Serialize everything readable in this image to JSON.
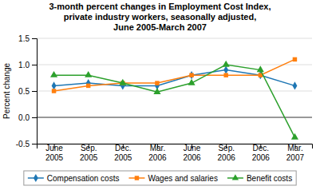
{
  "chart_data": {
    "type": "line",
    "title": "3-month percent changes in Employment Cost Index,\nprivate industry workers, seasonally adjusted,\nJune 2005-March 2007",
    "ylabel": "Percent change",
    "categories": [
      "June\n2005",
      "Sep.\n2005",
      "Dec.\n2005",
      "Mar.\n2006",
      "June\n2006",
      "Sep.\n2006",
      "Dec.\n2006",
      "Mar.\n2007"
    ],
    "series": [
      {
        "name": "Compensation costs",
        "marker": "diamond",
        "values": [
          0.6,
          0.65,
          0.6,
          0.6,
          0.8,
          0.9,
          0.8,
          0.6
        ]
      },
      {
        "name": "Wages and salaries",
        "marker": "square",
        "values": [
          0.5,
          0.6,
          0.65,
          0.65,
          0.8,
          0.8,
          0.8,
          1.1
        ]
      },
      {
        "name": "Benefit costs",
        "marker": "triangle",
        "values": [
          0.8,
          0.8,
          0.65,
          0.48,
          0.65,
          1.0,
          0.9,
          -0.38
        ]
      }
    ],
    "ylim": [
      -0.5,
      1.5
    ],
    "yticks": [
      -0.5,
      {
        "value": 0.0,
        "label": "0.0"
      },
      0.5,
      {
        "value": 1.0,
        "label": "1.0"
      },
      1.5
    ],
    "grid": true,
    "legend": "bottom"
  }
}
